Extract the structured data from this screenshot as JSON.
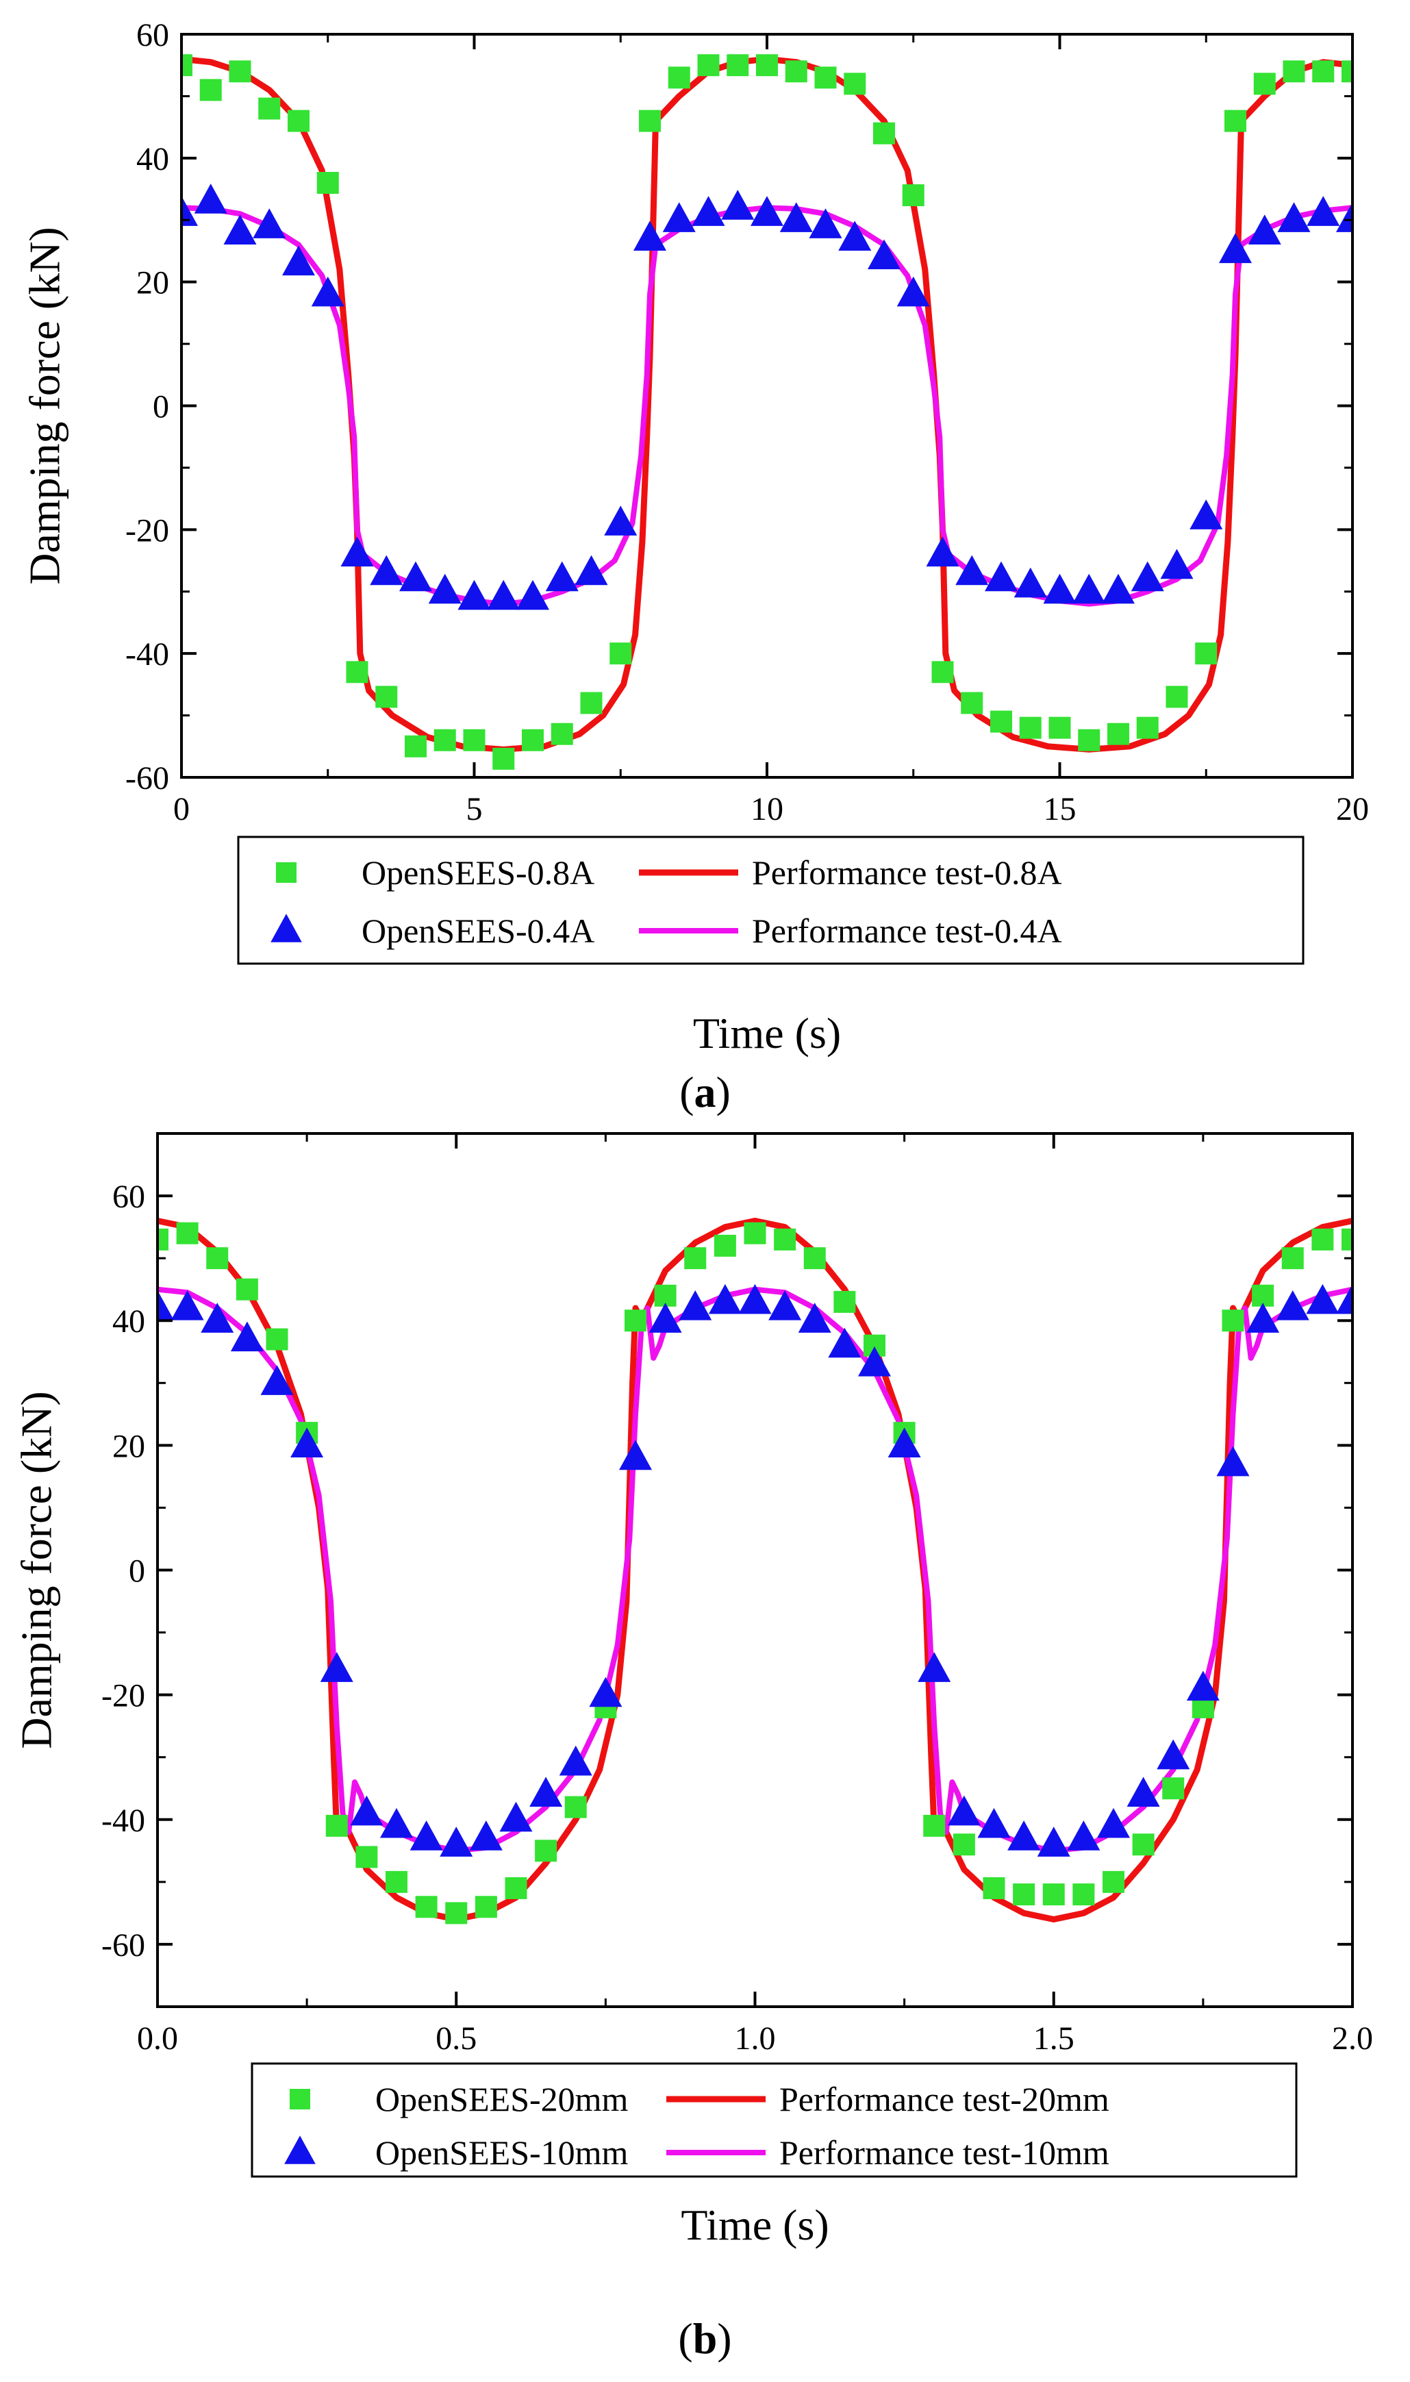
{
  "chart_data": [
    {
      "type": "line",
      "panel_label": "a",
      "xlabel": "Time (s)",
      "ylabel": "Damping force (kN)",
      "xlim": [
        0,
        20
      ],
      "ylim": [
        -60,
        60
      ],
      "xticks": [
        0,
        5,
        10,
        15,
        20
      ],
      "xtick_labels": [
        "0",
        "5",
        "10",
        "15",
        "20"
      ],
      "yticks": [
        -60,
        -40,
        -20,
        0,
        20,
        40,
        60
      ],
      "ytick_labels": [
        "-60",
        "-40",
        "-20",
        "0",
        "20",
        "40",
        "60"
      ],
      "minor_xticks": [
        2.5,
        7.5,
        12.5,
        17.5
      ],
      "minor_yticks": [
        -50,
        -30,
        -10,
        10,
        30,
        50
      ],
      "legend": [
        "OpenSEES-0.8A",
        "Performance test-0.8A",
        "OpenSEES-0.4A",
        "Performance test-0.4A"
      ],
      "series": [
        {
          "name": "OpenSEES-0.8A",
          "kind": "marker",
          "marker": "square",
          "color": "#33e233",
          "x": [
            0.0,
            0.5,
            1.0,
            1.5,
            2.0,
            2.5,
            3.0,
            3.5,
            4.0,
            4.5,
            5.0,
            5.5,
            6.0,
            6.5,
            7.0,
            7.5,
            8.0,
            8.5,
            9.0,
            9.5,
            10.0,
            10.5,
            11.0,
            11.5,
            12.0,
            12.5,
            13.0,
            13.5,
            14.0,
            14.5,
            15.0,
            15.5,
            16.0,
            16.5,
            17.0,
            17.5,
            18.0,
            18.5,
            19.0,
            19.5,
            20.0
          ],
          "y": [
            55,
            51,
            54,
            48,
            46,
            36,
            -43,
            -47,
            -55,
            -54,
            -54,
            -57,
            -54,
            -53,
            -48,
            -40,
            46,
            53,
            55,
            55,
            55,
            54,
            53,
            52,
            44,
            34,
            -43,
            -48,
            -51,
            -52,
            -52,
            -54,
            -53,
            -52,
            -47,
            -40,
            46,
            52,
            54,
            54,
            54
          ]
        },
        {
          "name": "Performance test-0.8A",
          "kind": "line",
          "color": "#ee1111",
          "width": 9,
          "x": [
            0,
            0.5,
            1.0,
            1.5,
            2.0,
            2.4,
            2.7,
            2.85,
            2.95,
            3.0,
            3.05,
            3.2,
            3.6,
            4.2,
            4.8,
            5.5,
            6.2,
            6.8,
            7.2,
            7.55,
            7.75,
            7.87,
            7.95,
            8.0,
            8.1,
            8.5,
            9.0,
            9.5,
            10.0,
            10.5,
            11.0,
            11.5,
            12.0,
            12.4,
            12.7,
            12.85,
            12.95,
            13.0,
            13.05,
            13.2,
            13.6,
            14.2,
            14.8,
            15.5,
            16.2,
            16.8,
            17.2,
            17.55,
            17.75,
            17.87,
            17.95,
            18.0,
            18.1,
            18.5,
            19.0,
            19.5,
            20.0
          ],
          "y": [
            56,
            55.5,
            54,
            51,
            46,
            38,
            22,
            5,
            -8,
            -20,
            -40,
            -46,
            -50,
            -53.5,
            -55,
            -55.5,
            -55,
            -53,
            -50,
            -45,
            -37,
            -22,
            -5,
            8,
            46,
            50,
            54,
            55.5,
            56,
            55.5,
            54,
            51,
            46,
            38,
            22,
            5,
            -8,
            -20,
            -40,
            -46,
            -50,
            -53.5,
            -55,
            -55.5,
            -55,
            -53,
            -50,
            -45,
            -37,
            -22,
            -5,
            8,
            46,
            50,
            54,
            55.5,
            55
          ]
        },
        {
          "name": "OpenSEES-0.4A",
          "kind": "marker",
          "marker": "triangle",
          "color": "#1111ee",
          "x": [
            0.0,
            0.5,
            1.0,
            1.5,
            2.0,
            2.5,
            3.0,
            3.5,
            4.0,
            4.5,
            5.0,
            5.5,
            6.0,
            6.5,
            7.0,
            7.5,
            8.0,
            8.5,
            9.0,
            9.5,
            10.0,
            10.5,
            11.0,
            11.5,
            12.0,
            12.5,
            13.0,
            13.5,
            14.0,
            14.5,
            15.0,
            15.5,
            16.0,
            16.5,
            17.0,
            17.5,
            18.0,
            18.5,
            19.0,
            19.5,
            20.0
          ],
          "y": [
            31,
            33,
            28,
            29,
            23,
            18,
            -24,
            -27,
            -28,
            -30,
            -31,
            -31,
            -31,
            -28,
            -27,
            -19,
            27,
            30,
            31,
            32,
            31,
            30,
            29,
            27,
            24,
            18,
            -24,
            -27,
            -28,
            -29,
            -30,
            -30,
            -30,
            -28,
            -26,
            -18,
            25,
            28,
            30,
            31,
            30
          ]
        },
        {
          "name": "Performance test-0.4A",
          "kind": "line",
          "color": "#ee11ee",
          "width": 8,
          "x": [
            0,
            0.5,
            1.0,
            1.5,
            2.0,
            2.4,
            2.7,
            2.85,
            2.95,
            3.0,
            3.1,
            3.5,
            4.0,
            4.5,
            5.0,
            5.5,
            6.0,
            6.5,
            7.0,
            7.4,
            7.7,
            7.85,
            7.95,
            8.0,
            8.1,
            8.5,
            9.0,
            9.5,
            10.0,
            10.5,
            11.0,
            11.5,
            12.0,
            12.4,
            12.7,
            12.85,
            12.95,
            13.0,
            13.1,
            13.5,
            14.0,
            14.5,
            15.0,
            15.5,
            16.0,
            16.5,
            17.0,
            17.4,
            17.7,
            17.85,
            17.95,
            18.0,
            18.1,
            18.5,
            19.0,
            19.5,
            20.0
          ],
          "y": [
            32,
            31.8,
            31,
            29,
            26,
            21,
            13,
            3,
            -5,
            -20,
            -24,
            -27,
            -29,
            -30.5,
            -31.5,
            -32,
            -31.5,
            -30,
            -28,
            -25,
            -19,
            -8,
            5,
            18,
            26,
            28.5,
            30.5,
            31.5,
            32,
            31.8,
            31,
            29,
            26,
            21,
            13,
            3,
            -5,
            -20,
            -24,
            -27,
            -29,
            -30.5,
            -31.5,
            -32,
            -31.5,
            -30,
            -28,
            -25,
            -19,
            -8,
            5,
            18,
            26,
            28.5,
            30.5,
            31.5,
            32
          ]
        }
      ]
    },
    {
      "type": "line",
      "panel_label": "b",
      "xlabel": "Time (s)",
      "ylabel": "Damping force (kN)",
      "xlim": [
        0,
        2
      ],
      "ylim": [
        -70,
        70
      ],
      "xticks": [
        0.0,
        0.5,
        1.0,
        1.5,
        2.0
      ],
      "xtick_labels": [
        "0.0",
        "0.5",
        "1.0",
        "1.5",
        "2.0"
      ],
      "yticks": [
        -60,
        -40,
        -20,
        0,
        20,
        40,
        60
      ],
      "ytick_labels": [
        "-60",
        "-40",
        "-20",
        "0",
        "20",
        "40",
        "60"
      ],
      "minor_xticks": [
        0.25,
        0.75,
        1.25,
        1.75
      ],
      "minor_yticks": [
        -70,
        -50,
        -30,
        -10,
        10,
        30,
        50,
        70
      ],
      "legend": [
        "OpenSEES-20mm",
        "Performance test-20mm",
        "OpenSEES-10mm",
        "Performance test-10mm"
      ],
      "series": [
        {
          "name": "OpenSEES-20mm",
          "kind": "marker",
          "marker": "square",
          "color": "#33e233",
          "x": [
            0.0,
            0.05,
            0.1,
            0.15,
            0.2,
            0.25,
            0.3,
            0.35,
            0.4,
            0.45,
            0.5,
            0.55,
            0.6,
            0.65,
            0.7,
            0.75,
            0.8,
            0.85,
            0.9,
            0.95,
            1.0,
            1.05,
            1.1,
            1.15,
            1.2,
            1.25,
            1.3,
            1.35,
            1.4,
            1.45,
            1.5,
            1.55,
            1.6,
            1.65,
            1.7,
            1.75,
            1.8,
            1.85,
            1.9,
            1.95,
            2.0
          ],
          "y": [
            53,
            54,
            50,
            45,
            37,
            22,
            -41,
            -46,
            -50,
            -54,
            -55,
            -54,
            -51,
            -45,
            -38,
            -22,
            40,
            44,
            50,
            52,
            54,
            53,
            50,
            43,
            36,
            22,
            -41,
            -44,
            -51,
            -52,
            -52,
            -52,
            -50,
            -44,
            -35,
            -22,
            40,
            44,
            50,
            53,
            53
          ]
        },
        {
          "name": "Performance test-20mm",
          "kind": "line",
          "color": "#ee1111",
          "width": 9,
          "x": [
            0.0,
            0.05,
            0.1,
            0.15,
            0.2,
            0.24,
            0.27,
            0.285,
            0.295,
            0.3,
            0.31,
            0.33,
            0.35,
            0.4,
            0.45,
            0.5,
            0.55,
            0.6,
            0.65,
            0.7,
            0.74,
            0.77,
            0.785,
            0.795,
            0.8,
            0.81,
            0.83,
            0.85,
            0.9,
            0.95,
            1.0,
            1.05,
            1.1,
            1.15,
            1.2,
            1.24,
            1.27,
            1.285,
            1.295,
            1.3,
            1.31,
            1.33,
            1.35,
            1.4,
            1.45,
            1.5,
            1.55,
            1.6,
            1.65,
            1.7,
            1.74,
            1.77,
            1.785,
            1.795,
            1.8,
            1.81,
            1.83,
            1.85,
            1.9,
            1.95,
            2.0
          ],
          "y": [
            56,
            55,
            51,
            45,
            36,
            25,
            10,
            -3,
            -30,
            -42,
            -40,
            -44,
            -48,
            -52.5,
            -55,
            -56,
            -55,
            -52.5,
            -47,
            -40,
            -32,
            -20,
            -5,
            30,
            42,
            40,
            44,
            48,
            52.5,
            55,
            56,
            55,
            51,
            45,
            36,
            25,
            10,
            -3,
            -30,
            -42,
            -40,
            -44,
            -48,
            -52.5,
            -55,
            -56,
            -55,
            -52.5,
            -47,
            -40,
            -32,
            -20,
            -5,
            30,
            42,
            40,
            44,
            48,
            52.5,
            55,
            56
          ]
        },
        {
          "name": "OpenSEES-10mm",
          "kind": "marker",
          "marker": "triangle",
          "color": "#1111ee",
          "x": [
            0.0,
            0.05,
            0.1,
            0.15,
            0.2,
            0.25,
            0.3,
            0.35,
            0.4,
            0.45,
            0.5,
            0.55,
            0.6,
            0.65,
            0.7,
            0.75,
            0.8,
            0.85,
            0.9,
            0.95,
            1.0,
            1.05,
            1.1,
            1.15,
            1.2,
            1.25,
            1.3,
            1.35,
            1.4,
            1.45,
            1.5,
            1.55,
            1.6,
            1.65,
            1.7,
            1.75,
            1.8,
            1.85,
            1.9,
            1.95,
            2.0
          ],
          "y": [
            42,
            42,
            40,
            37,
            30,
            20,
            -16,
            -39,
            -41,
            -43,
            -44,
            -43,
            -40,
            -36,
            -31,
            -20,
            18,
            40,
            42,
            43,
            43,
            42,
            40,
            36,
            33,
            20,
            -16,
            -39,
            -41,
            -43,
            -44,
            -43,
            -41,
            -36,
            -30,
            -19,
            17,
            40,
            42,
            43,
            43
          ]
        },
        {
          "name": "Performance test-10mm",
          "kind": "line",
          "color": "#ee11ee",
          "width": 8,
          "x": [
            0.0,
            0.05,
            0.1,
            0.15,
            0.2,
            0.24,
            0.27,
            0.29,
            0.3,
            0.31,
            0.32,
            0.33,
            0.34,
            0.35,
            0.4,
            0.45,
            0.5,
            0.55,
            0.6,
            0.65,
            0.7,
            0.74,
            0.77,
            0.79,
            0.8,
            0.81,
            0.82,
            0.83,
            0.84,
            0.85,
            0.9,
            0.95,
            1.0,
            1.05,
            1.1,
            1.15,
            1.2,
            1.24,
            1.27,
            1.29,
            1.3,
            1.31,
            1.32,
            1.33,
            1.34,
            1.35,
            1.4,
            1.45,
            1.5,
            1.55,
            1.6,
            1.65,
            1.7,
            1.74,
            1.77,
            1.79,
            1.8,
            1.81,
            1.82,
            1.83,
            1.84,
            1.85,
            1.9,
            1.95,
            2.0
          ],
          "y": [
            45,
            44.5,
            42,
            38,
            32,
            24,
            12,
            -5,
            -25,
            -39,
            -42,
            -34,
            -36,
            -39,
            -42,
            -44,
            -45,
            -44.5,
            -42,
            -38,
            -32,
            -24,
            -12,
            5,
            25,
            39,
            42,
            34,
            36,
            39,
            42,
            44,
            45,
            44.5,
            42,
            38,
            32,
            24,
            12,
            -5,
            -25,
            -39,
            -42,
            -34,
            -36,
            -39,
            -42,
            -44,
            -45,
            -44.5,
            -42,
            -38,
            -32,
            -24,
            -12,
            5,
            25,
            39,
            42,
            34,
            36,
            39,
            42,
            44,
            45
          ]
        }
      ]
    }
  ]
}
